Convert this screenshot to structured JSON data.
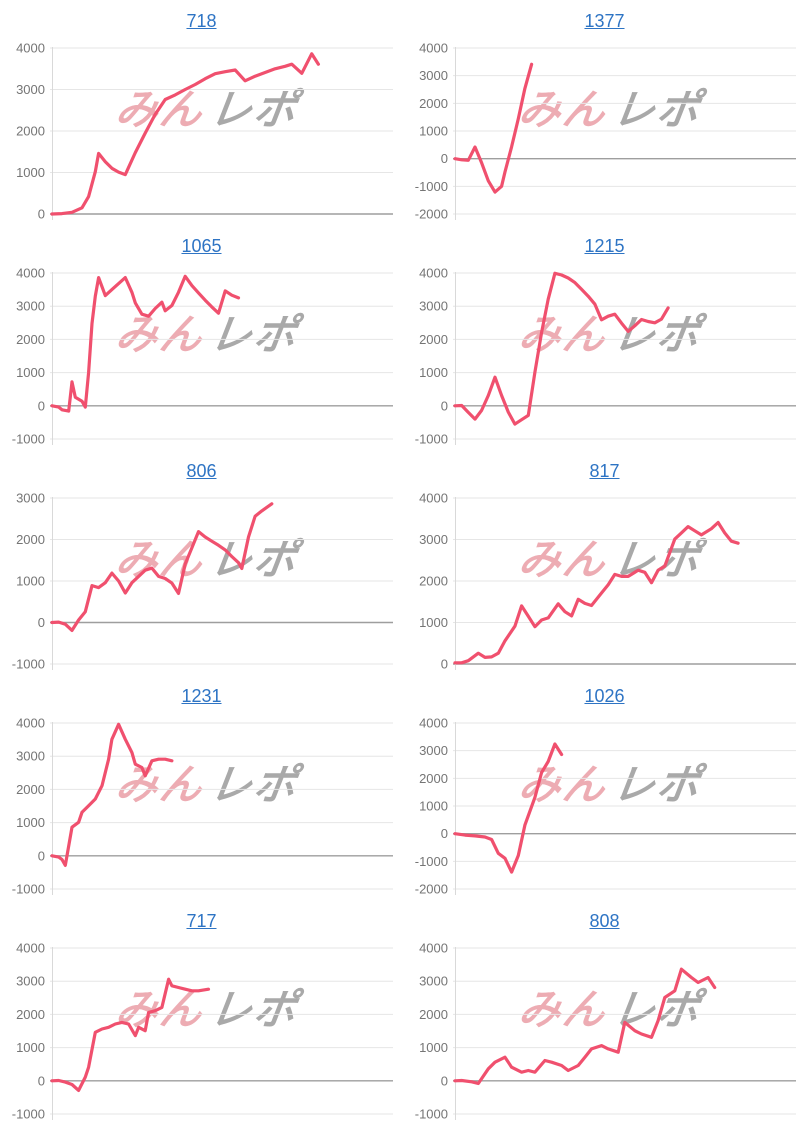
{
  "page": {
    "background": "#ffffff"
  },
  "colors": {
    "series_line": "#f0506e",
    "title_link": "#2e74c4",
    "gridline": "#e6e6e6",
    "zero_line": "#9e9e9e",
    "axis_line": "#d9d9d9",
    "axis_text": "#757575",
    "watermark_pink": "#edacb3",
    "watermark_gray": "#a9a9a9"
  },
  "watermark": {
    "pink_text": "みん",
    "gray_text": "レポ"
  },
  "chart_data": [
    {
      "type": "line",
      "title": "718",
      "ylim": [
        0,
        4000
      ],
      "ytick_step": 1000,
      "yticks": [
        0,
        1000,
        2000,
        3000,
        4000
      ],
      "grid": true,
      "legend": "none",
      "x_axis_labels": "none",
      "points": [
        [
          0,
          0
        ],
        [
          3,
          10
        ],
        [
          6,
          40
        ],
        [
          9,
          150
        ],
        [
          11,
          420
        ],
        [
          13,
          1020
        ],
        [
          14,
          1460
        ],
        [
          16,
          1260
        ],
        [
          18,
          1100
        ],
        [
          20,
          1010
        ],
        [
          22,
          950
        ],
        [
          25,
          1480
        ],
        [
          28,
          1950
        ],
        [
          31,
          2400
        ],
        [
          34,
          2760
        ],
        [
          37,
          2870
        ],
        [
          40,
          3000
        ],
        [
          43,
          3120
        ],
        [
          46,
          3260
        ],
        [
          49,
          3380
        ],
        [
          52,
          3430
        ],
        [
          55,
          3470
        ],
        [
          58,
          3210
        ],
        [
          61,
          3320
        ],
        [
          64,
          3410
        ],
        [
          67,
          3500
        ],
        [
          70,
          3560
        ],
        [
          72,
          3610
        ],
        [
          75,
          3390
        ],
        [
          78,
          3860
        ],
        [
          80,
          3610
        ]
      ]
    },
    {
      "type": "line",
      "title": "1377",
      "ylim": [
        -2000,
        4000
      ],
      "ytick_step": 1000,
      "yticks": [
        -2000,
        -1000,
        0,
        1000,
        2000,
        3000,
        4000
      ],
      "grid": true,
      "legend": "none",
      "x_axis_labels": "none",
      "points": [
        [
          0,
          0
        ],
        [
          2,
          -40
        ],
        [
          4,
          -60
        ],
        [
          6,
          420
        ],
        [
          8,
          -150
        ],
        [
          10,
          -800
        ],
        [
          12,
          -1210
        ],
        [
          14,
          -1000
        ],
        [
          15,
          -480
        ],
        [
          17,
          430
        ],
        [
          19,
          1440
        ],
        [
          21,
          2540
        ],
        [
          23,
          3410
        ]
      ]
    },
    {
      "type": "line",
      "title": "1065",
      "ylim": [
        -1000,
        4000
      ],
      "ytick_step": 1000,
      "yticks": [
        -1000,
        0,
        1000,
        2000,
        3000,
        4000
      ],
      "grid": true,
      "legend": "none",
      "x_axis_labels": "none",
      "points": [
        [
          0,
          0
        ],
        [
          2,
          -40
        ],
        [
          3,
          -120
        ],
        [
          5,
          -160
        ],
        [
          6,
          720
        ],
        [
          7,
          260
        ],
        [
          9,
          140
        ],
        [
          10,
          -40
        ],
        [
          11,
          1000
        ],
        [
          12,
          2480
        ],
        [
          13,
          3300
        ],
        [
          14,
          3860
        ],
        [
          16,
          3320
        ],
        [
          18,
          3500
        ],
        [
          20,
          3680
        ],
        [
          22,
          3860
        ],
        [
          24,
          3420
        ],
        [
          25,
          3100
        ],
        [
          27,
          2760
        ],
        [
          29,
          2700
        ],
        [
          31,
          2930
        ],
        [
          33,
          3120
        ],
        [
          34,
          2860
        ],
        [
          36,
          3020
        ],
        [
          38,
          3420
        ],
        [
          40,
          3900
        ],
        [
          42,
          3620
        ],
        [
          44,
          3400
        ],
        [
          46,
          3180
        ],
        [
          48,
          2980
        ],
        [
          50,
          2790
        ],
        [
          52,
          3460
        ],
        [
          54,
          3330
        ],
        [
          56,
          3250
        ]
      ]
    },
    {
      "type": "line",
      "title": "1215",
      "ylim": [
        -1000,
        4000
      ],
      "ytick_step": 1000,
      "yticks": [
        -1000,
        0,
        1000,
        2000,
        3000,
        4000
      ],
      "grid": true,
      "legend": "none",
      "x_axis_labels": "none",
      "points": [
        [
          0,
          0
        ],
        [
          2,
          10
        ],
        [
          4,
          -200
        ],
        [
          6,
          -400
        ],
        [
          8,
          -140
        ],
        [
          10,
          310
        ],
        [
          12,
          860
        ],
        [
          14,
          310
        ],
        [
          16,
          -190
        ],
        [
          18,
          -550
        ],
        [
          20,
          -420
        ],
        [
          22,
          -290
        ],
        [
          24,
          1010
        ],
        [
          26,
          2210
        ],
        [
          28,
          3210
        ],
        [
          30,
          3990
        ],
        [
          32,
          3940
        ],
        [
          34,
          3850
        ],
        [
          36,
          3710
        ],
        [
          38,
          3510
        ],
        [
          40,
          3300
        ],
        [
          42,
          3060
        ],
        [
          44,
          2590
        ],
        [
          46,
          2700
        ],
        [
          48,
          2760
        ],
        [
          50,
          2490
        ],
        [
          52,
          2240
        ],
        [
          54,
          2410
        ],
        [
          56,
          2600
        ],
        [
          58,
          2540
        ],
        [
          60,
          2500
        ],
        [
          62,
          2610
        ],
        [
          64,
          2950
        ]
      ]
    },
    {
      "type": "line",
      "title": "806",
      "ylim": [
        -1000,
        3000
      ],
      "ytick_step": 1000,
      "yticks": [
        -1000,
        0,
        1000,
        2000,
        3000
      ],
      "grid": true,
      "legend": "none",
      "x_axis_labels": "none",
      "points": [
        [
          0,
          0
        ],
        [
          2,
          10
        ],
        [
          4,
          -40
        ],
        [
          6,
          -190
        ],
        [
          8,
          60
        ],
        [
          10,
          260
        ],
        [
          12,
          890
        ],
        [
          14,
          840
        ],
        [
          16,
          960
        ],
        [
          18,
          1190
        ],
        [
          20,
          1000
        ],
        [
          22,
          710
        ],
        [
          24,
          960
        ],
        [
          26,
          1110
        ],
        [
          28,
          1260
        ],
        [
          30,
          1310
        ],
        [
          32,
          1110
        ],
        [
          34,
          1060
        ],
        [
          36,
          950
        ],
        [
          38,
          700
        ],
        [
          40,
          1410
        ],
        [
          42,
          1800
        ],
        [
          44,
          2190
        ],
        [
          46,
          2060
        ],
        [
          48,
          1960
        ],
        [
          50,
          1860
        ],
        [
          52,
          1750
        ],
        [
          54,
          1590
        ],
        [
          56,
          1440
        ],
        [
          57,
          1300
        ],
        [
          59,
          2060
        ],
        [
          61,
          2560
        ],
        [
          63,
          2690
        ],
        [
          66,
          2860
        ]
      ]
    },
    {
      "type": "line",
      "title": "817",
      "ylim": [
        0,
        4000
      ],
      "ytick_step": 1000,
      "yticks": [
        0,
        1000,
        2000,
        3000,
        4000
      ],
      "grid": true,
      "legend": "none",
      "x_axis_labels": "none",
      "points": [
        [
          0,
          30
        ],
        [
          2,
          30
        ],
        [
          4,
          80
        ],
        [
          7,
          260
        ],
        [
          9,
          160
        ],
        [
          11,
          170
        ],
        [
          13,
          260
        ],
        [
          15,
          560
        ],
        [
          18,
          910
        ],
        [
          20,
          1400
        ],
        [
          22,
          1150
        ],
        [
          24,
          900
        ],
        [
          26,
          1060
        ],
        [
          28,
          1110
        ],
        [
          31,
          1450
        ],
        [
          33,
          1260
        ],
        [
          35,
          1160
        ],
        [
          37,
          1560
        ],
        [
          39,
          1460
        ],
        [
          41,
          1410
        ],
        [
          44,
          1710
        ],
        [
          46,
          1910
        ],
        [
          48,
          2160
        ],
        [
          50,
          2110
        ],
        [
          52,
          2110
        ],
        [
          55,
          2260
        ],
        [
          57,
          2210
        ],
        [
          59,
          1960
        ],
        [
          61,
          2260
        ],
        [
          63,
          2360
        ],
        [
          66,
          3010
        ],
        [
          68,
          3160
        ],
        [
          70,
          3310
        ],
        [
          72,
          3210
        ],
        [
          74,
          3110
        ],
        [
          77,
          3260
        ],
        [
          79,
          3410
        ],
        [
          81,
          3160
        ],
        [
          83,
          2960
        ],
        [
          85,
          2910
        ]
      ]
    },
    {
      "type": "line",
      "title": "1231",
      "ylim": [
        -1000,
        4000
      ],
      "ytick_step": 1000,
      "yticks": [
        -1000,
        0,
        1000,
        2000,
        3000,
        4000
      ],
      "grid": true,
      "legend": "none",
      "x_axis_labels": "none",
      "points": [
        [
          0,
          0
        ],
        [
          2,
          -40
        ],
        [
          3,
          -110
        ],
        [
          4,
          -290
        ],
        [
          6,
          860
        ],
        [
          8,
          1010
        ],
        [
          9,
          1310
        ],
        [
          11,
          1510
        ],
        [
          13,
          1710
        ],
        [
          15,
          2110
        ],
        [
          17,
          2910
        ],
        [
          18,
          3510
        ],
        [
          20,
          3960
        ],
        [
          22,
          3510
        ],
        [
          24,
          3110
        ],
        [
          25,
          2760
        ],
        [
          27,
          2660
        ],
        [
          28,
          2410
        ],
        [
          30,
          2860
        ],
        [
          32,
          2910
        ],
        [
          34,
          2910
        ],
        [
          36,
          2860
        ]
      ]
    },
    {
      "type": "line",
      "title": "1026",
      "ylim": [
        -2000,
        4000
      ],
      "ytick_step": 1000,
      "yticks": [
        -2000,
        -1000,
        0,
        1000,
        2000,
        3000,
        4000
      ],
      "grid": true,
      "legend": "none",
      "x_axis_labels": "none",
      "points": [
        [
          0,
          0
        ],
        [
          3,
          -50
        ],
        [
          6,
          -80
        ],
        [
          9,
          -120
        ],
        [
          11,
          -210
        ],
        [
          13,
          -710
        ],
        [
          15,
          -890
        ],
        [
          17,
          -1390
        ],
        [
          19,
          -790
        ],
        [
          21,
          310
        ],
        [
          24,
          1310
        ],
        [
          26,
          2210
        ],
        [
          28,
          2610
        ],
        [
          30,
          3240
        ],
        [
          32,
          2860
        ]
      ]
    },
    {
      "type": "line",
      "title": "717",
      "ylim": [
        -1000,
        4000
      ],
      "ytick_step": 1000,
      "yticks": [
        -1000,
        0,
        1000,
        2000,
        3000,
        4000
      ],
      "grid": true,
      "legend": "none",
      "x_axis_labels": "none",
      "points": [
        [
          0,
          0
        ],
        [
          2,
          10
        ],
        [
          4,
          -40
        ],
        [
          6,
          -110
        ],
        [
          8,
          -290
        ],
        [
          10,
          110
        ],
        [
          11,
          410
        ],
        [
          13,
          1460
        ],
        [
          15,
          1560
        ],
        [
          17,
          1610
        ],
        [
          19,
          1710
        ],
        [
          21,
          1760
        ],
        [
          23,
          1710
        ],
        [
          25,
          1360
        ],
        [
          26,
          1610
        ],
        [
          28,
          1510
        ],
        [
          29,
          2060
        ],
        [
          31,
          2110
        ],
        [
          33,
          2210
        ],
        [
          35,
          3060
        ],
        [
          36,
          2860
        ],
        [
          38,
          2810
        ],
        [
          40,
          2760
        ],
        [
          42,
          2710
        ],
        [
          44,
          2710
        ],
        [
          47,
          2760
        ]
      ]
    },
    {
      "type": "line",
      "title": "808",
      "ylim": [
        -1000,
        4000
      ],
      "ytick_step": 1000,
      "yticks": [
        -1000,
        0,
        1000,
        2000,
        3000,
        4000
      ],
      "grid": true,
      "legend": "none",
      "x_axis_labels": "none",
      "points": [
        [
          0,
          0
        ],
        [
          2,
          10
        ],
        [
          5,
          -30
        ],
        [
          7,
          -80
        ],
        [
          10,
          360
        ],
        [
          12,
          560
        ],
        [
          15,
          710
        ],
        [
          17,
          410
        ],
        [
          20,
          260
        ],
        [
          22,
          310
        ],
        [
          24,
          260
        ],
        [
          27,
          610
        ],
        [
          29,
          560
        ],
        [
          32,
          460
        ],
        [
          34,
          310
        ],
        [
          37,
          460
        ],
        [
          39,
          710
        ],
        [
          41,
          960
        ],
        [
          44,
          1060
        ],
        [
          46,
          960
        ],
        [
          49,
          860
        ],
        [
          51,
          1760
        ],
        [
          54,
          1510
        ],
        [
          56,
          1410
        ],
        [
          59,
          1310
        ],
        [
          61,
          1810
        ],
        [
          63,
          2510
        ],
        [
          66,
          2710
        ],
        [
          68,
          3360
        ],
        [
          71,
          3110
        ],
        [
          73,
          2960
        ],
        [
          76,
          3110
        ],
        [
          78,
          2810
        ]
      ]
    }
  ]
}
